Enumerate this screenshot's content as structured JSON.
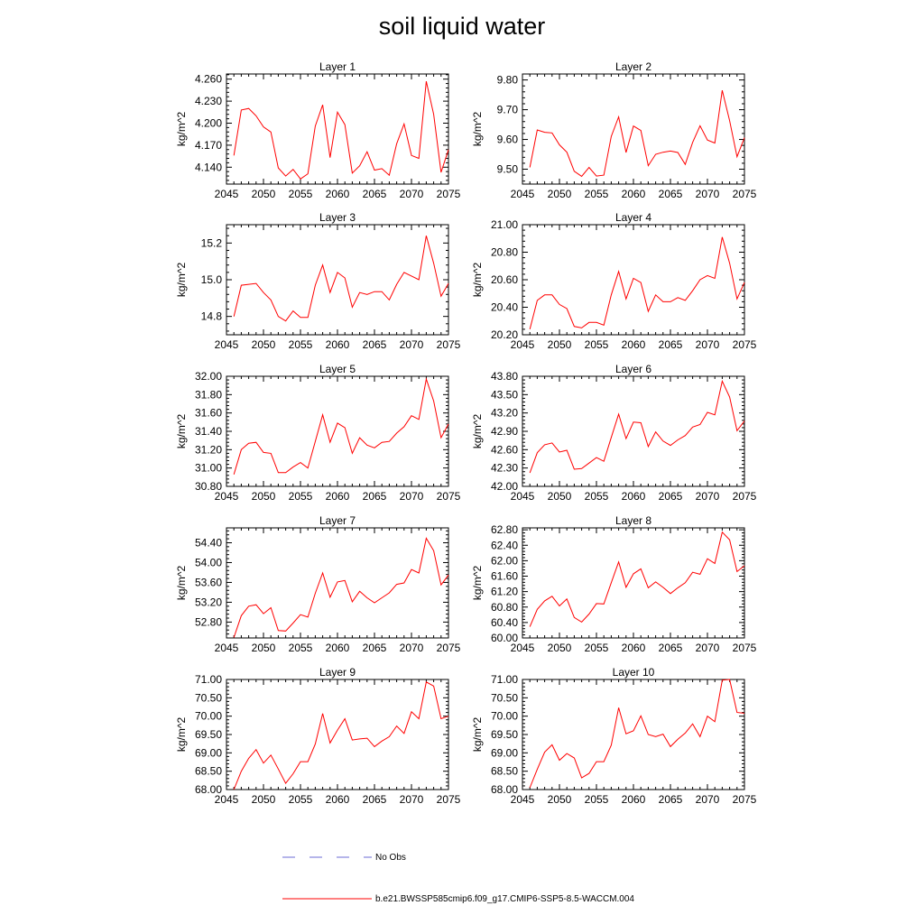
{
  "title": "soil liquid water",
  "chart_data": {
    "type": "line",
    "title": "soil liquid water",
    "x": [
      2046,
      2047,
      2048,
      2049,
      2050,
      2051,
      2052,
      2053,
      2054,
      2055,
      2056,
      2057,
      2058,
      2059,
      2060,
      2061,
      2062,
      2063,
      2064,
      2065,
      2066,
      2067,
      2068,
      2069,
      2070,
      2071,
      2072,
      2073,
      2074,
      2075
    ],
    "xlim": [
      2045,
      2075
    ],
    "xticks": [
      "2045",
      "2050",
      "2055",
      "2060",
      "2065",
      "2070",
      "2075"
    ],
    "line_color": "#ff0000",
    "panels": [
      {
        "title": "Layer 1",
        "ylabel": "kg/m^2",
        "ylim": [
          4.117,
          4.267
        ],
        "yticks": [
          "4.140",
          "4.170",
          "4.200",
          "4.230",
          "4.260"
        ],
        "ytick_values": [
          4.14,
          4.17,
          4.2,
          4.23,
          4.26
        ],
        "values": [
          4.156,
          4.218,
          4.22,
          4.21,
          4.195,
          4.188,
          4.139,
          4.128,
          4.137,
          4.124,
          4.131,
          4.196,
          4.225,
          4.153,
          4.215,
          4.198,
          4.132,
          4.142,
          4.161,
          4.136,
          4.138,
          4.129,
          4.172,
          4.199,
          4.156,
          4.152,
          4.257,
          4.212,
          4.133,
          4.164
        ]
      },
      {
        "title": "Layer 2",
        "ylabel": "kg/m^2",
        "ylim": [
          9.45,
          9.82
        ],
        "yticks": [
          "9.50",
          "9.60",
          "9.70",
          "9.80"
        ],
        "ytick_values": [
          9.5,
          9.6,
          9.7,
          9.8
        ],
        "values": [
          9.506,
          9.632,
          9.624,
          9.622,
          9.582,
          9.557,
          9.493,
          9.476,
          9.506,
          9.477,
          9.48,
          9.61,
          9.676,
          9.556,
          9.645,
          9.63,
          9.512,
          9.55,
          9.557,
          9.561,
          9.556,
          9.516,
          9.59,
          9.646,
          9.598,
          9.588,
          9.765,
          9.663,
          9.542,
          9.606
        ]
      },
      {
        "title": "Layer 3",
        "ylabel": "kg/m^2",
        "ylim": [
          14.7,
          15.3
        ],
        "yticks": [
          "14.8",
          "15.0",
          "15.2"
        ],
        "ytick_values": [
          14.8,
          15.0,
          15.2
        ],
        "values": [
          14.8,
          14.97,
          14.975,
          14.98,
          14.93,
          14.89,
          14.8,
          14.775,
          14.83,
          14.795,
          14.795,
          14.97,
          15.08,
          14.93,
          15.04,
          15.01,
          14.85,
          14.93,
          14.92,
          14.935,
          14.935,
          14.89,
          14.975,
          15.04,
          15.02,
          15.0,
          15.24,
          15.09,
          14.91,
          14.98
        ]
      },
      {
        "title": "Layer 4",
        "ylabel": "kg/m^2",
        "ylim": [
          20.2,
          21.0
        ],
        "yticks": [
          "20.20",
          "20.40",
          "20.60",
          "20.80",
          "21.00"
        ],
        "ytick_values": [
          20.2,
          20.4,
          20.6,
          20.8,
          21.0
        ],
        "values": [
          20.24,
          20.45,
          20.49,
          20.49,
          20.42,
          20.39,
          20.26,
          20.25,
          20.29,
          20.29,
          20.27,
          20.49,
          20.66,
          20.46,
          20.61,
          20.58,
          20.37,
          20.49,
          20.44,
          20.44,
          20.47,
          20.45,
          20.52,
          20.6,
          20.63,
          20.61,
          20.91,
          20.72,
          20.46,
          20.58
        ]
      },
      {
        "title": "Layer 5",
        "ylabel": "kg/m^2",
        "ylim": [
          30.8,
          32.0
        ],
        "yticks": [
          "30.80",
          "31.00",
          "31.20",
          "31.40",
          "31.60",
          "31.80",
          "32.00"
        ],
        "ytick_values": [
          30.8,
          31.0,
          31.2,
          31.4,
          31.6,
          31.8,
          32.0
        ],
        "values": [
          30.93,
          31.2,
          31.27,
          31.28,
          31.17,
          31.16,
          30.95,
          30.95,
          31.01,
          31.06,
          31.0,
          31.29,
          31.58,
          31.28,
          31.49,
          31.44,
          31.16,
          31.33,
          31.25,
          31.22,
          31.28,
          31.29,
          31.38,
          31.45,
          31.57,
          31.53,
          31.97,
          31.73,
          31.33,
          31.48
        ]
      },
      {
        "title": "Layer 6",
        "ylabel": "kg/m^2",
        "ylim": [
          42.0,
          43.8
        ],
        "yticks": [
          "42.00",
          "42.30",
          "42.60",
          "42.90",
          "43.20",
          "43.50",
          "43.80"
        ],
        "ytick_values": [
          42.0,
          42.3,
          42.6,
          42.9,
          43.2,
          43.5,
          43.8
        ],
        "values": [
          42.22,
          42.55,
          42.68,
          42.71,
          42.56,
          42.59,
          42.28,
          42.29,
          42.38,
          42.47,
          42.41,
          42.8,
          43.18,
          42.78,
          43.05,
          43.04,
          42.65,
          42.89,
          42.74,
          42.67,
          42.76,
          42.83,
          42.97,
          43.01,
          43.21,
          43.17,
          43.72,
          43.46,
          42.91,
          43.07
        ]
      },
      {
        "title": "Layer 7",
        "ylabel": "kg/m^2",
        "ylim": [
          52.48,
          54.7
        ],
        "yticks": [
          "52.80",
          "53.20",
          "53.60",
          "54.00",
          "54.40"
        ],
        "ytick_values": [
          52.8,
          53.2,
          53.6,
          54.0,
          54.4
        ],
        "values": [
          52.49,
          52.93,
          53.12,
          53.15,
          52.97,
          53.09,
          52.63,
          52.62,
          52.78,
          52.95,
          52.9,
          53.38,
          53.79,
          53.3,
          53.61,
          53.64,
          53.21,
          53.42,
          53.29,
          53.19,
          53.29,
          53.39,
          53.56,
          53.59,
          53.86,
          53.79,
          54.49,
          54.24,
          53.55,
          53.75
        ]
      },
      {
        "title": "Layer 8",
        "ylabel": "kg/m^2",
        "ylim": [
          60.0,
          62.85
        ],
        "yticks": [
          "60.00",
          "60.40",
          "60.80",
          "61.20",
          "61.60",
          "62.00",
          "62.40",
          "62.80"
        ],
        "ytick_values": [
          60.0,
          60.4,
          60.8,
          61.2,
          61.6,
          62.0,
          62.4,
          62.8
        ],
        "values": [
          60.29,
          60.74,
          60.96,
          61.08,
          60.83,
          61.01,
          60.53,
          60.41,
          60.62,
          60.89,
          60.88,
          61.43,
          61.97,
          61.31,
          61.66,
          61.79,
          61.3,
          61.45,
          61.31,
          61.15,
          61.3,
          61.43,
          61.7,
          61.65,
          62.05,
          61.93,
          62.74,
          62.54,
          61.72,
          61.87
        ]
      },
      {
        "title": "Layer 9",
        "ylabel": "kg/m^2",
        "ylim": [
          68.0,
          71.0
        ],
        "yticks": [
          "68.00",
          "68.50",
          "69.00",
          "69.50",
          "70.00",
          "70.50",
          "71.00"
        ],
        "ytick_values": [
          68.0,
          68.5,
          69.0,
          69.5,
          70.0,
          70.5,
          71.0
        ],
        "values": [
          68.0,
          68.5,
          68.85,
          69.09,
          68.72,
          68.94,
          68.56,
          68.17,
          68.43,
          68.76,
          68.76,
          69.24,
          70.07,
          69.27,
          69.62,
          69.93,
          69.35,
          69.38,
          69.4,
          69.17,
          69.32,
          69.44,
          69.73,
          69.53,
          70.12,
          69.93,
          70.93,
          70.82,
          69.93,
          70.0
        ]
      },
      {
        "title": "Layer 10",
        "ylabel": "kg/m^2",
        "ylim": [
          68.0,
          71.0
        ],
        "yticks": [
          "68.00",
          "68.50",
          "69.00",
          "69.50",
          "70.00",
          "70.50",
          "71.00"
        ],
        "ytick_values": [
          68.0,
          68.5,
          69.0,
          69.5,
          70.0,
          70.5,
          71.0
        ],
        "values": [
          68.05,
          68.55,
          69.02,
          69.22,
          68.8,
          68.98,
          68.86,
          68.32,
          68.44,
          68.76,
          68.76,
          69.21,
          70.23,
          69.52,
          69.6,
          70.01,
          69.5,
          69.44,
          69.51,
          69.17,
          69.37,
          69.54,
          69.79,
          69.44,
          70.0,
          69.85,
          70.98,
          71.0,
          70.1,
          70.08
        ]
      }
    ],
    "legend": [
      {
        "label": "No Obs",
        "style": "dashed",
        "color": "#6b6bd6"
      },
      {
        "label": "b.e21.BWSSP585cmip6.f09_g17.CMIP6-SSP5-8.5-WACCM.004",
        "style": "solid",
        "color": "#ff0000"
      }
    ]
  }
}
